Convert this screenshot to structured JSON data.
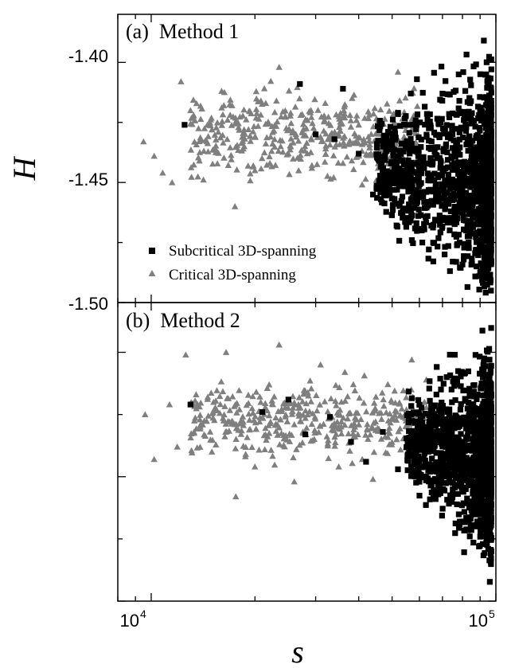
{
  "chart_data": [
    {
      "type": "scatter",
      "panel_label": "(a)  Method 1",
      "xlabel": "s",
      "ylabel": "H",
      "xscale": "log",
      "xlim": [
        8000,
        100000
      ],
      "ylim": [
        -1.5,
        -1.38
      ],
      "yticks": [
        "-1.40",
        "-1.45",
        "-1.50"
      ],
      "xticks": [
        {
          "base": "10",
          "exp": "4"
        },
        {
          "base": "10",
          "exp": "5"
        }
      ],
      "legend": {
        "placement": "lower-left",
        "entries": [
          "Subcritical 3D-spanning",
          "Critical 3D-spanning"
        ]
      },
      "series": [
        {
          "name": "Subcritical 3D-spanning",
          "marker": "square",
          "color": "#000000",
          "points": [
            [
              12500,
              -1.426
            ],
            [
              27000,
              -1.409
            ],
            [
              30000,
              -1.43
            ],
            [
              34000,
              -1.432
            ],
            [
              36000,
              -1.411
            ],
            [
              40000,
              -1.438
            ],
            [
              44000,
              -1.455
            ],
            [
              47000,
              -1.435
            ],
            [
              52000,
              -1.421
            ],
            [
              56000,
              -1.446
            ],
            [
              59000,
              -1.407
            ],
            [
              63000,
              -1.431
            ],
            [
              67000,
              -1.456
            ],
            [
              70000,
              -1.413
            ],
            [
              74000,
              -1.462
            ],
            [
              78000,
              -1.405
            ],
            [
              82000,
              -1.47
            ],
            [
              85000,
              -1.444
            ],
            [
              88000,
              -1.478
            ],
            [
              90000,
              -1.452
            ],
            [
              92000,
              -1.486
            ],
            [
              94000,
              -1.49
            ],
            [
              95000,
              -1.419
            ],
            [
              96000,
              -1.447
            ]
          ],
          "dense_region": {
            "x": [
              45000,
              97000
            ],
            "y": [
              -1.478,
              -1.408
            ]
          }
        },
        {
          "name": "Critical 3D-spanning",
          "marker": "triangle",
          "color": "#7f7f7f",
          "points": [
            [
              8100,
              -1.422
            ],
            [
              9500,
              -1.433
            ],
            [
              10200,
              -1.439
            ],
            [
              10800,
              -1.446
            ],
            [
              11500,
              -1.45
            ],
            [
              12200,
              -1.408
            ],
            [
              13000,
              -1.42
            ],
            [
              13800,
              -1.441
            ],
            [
              15000,
              -1.428
            ],
            [
              16000,
              -1.412
            ],
            [
              17500,
              -1.46
            ],
            [
              18500,
              -1.436
            ],
            [
              20000,
              -1.445
            ],
            [
              21500,
              -1.417
            ],
            [
              23500,
              -1.402
            ],
            [
              25000,
              -1.438
            ],
            [
              28000,
              -1.424
            ],
            [
              32000,
              -1.417
            ],
            [
              36000,
              -1.442
            ],
            [
              40000,
              -1.426
            ],
            [
              45000,
              -1.449
            ],
            [
              52000,
              -1.404
            ],
            [
              60000,
              -1.438
            ],
            [
              70000,
              -1.441
            ]
          ],
          "dense_region": {
            "x": [
              13000,
              60000
            ],
            "y": [
              -1.448,
              -1.412
            ]
          }
        }
      ]
    },
    {
      "type": "scatter",
      "panel_label": "(b)  Method 2",
      "xlabel": "s",
      "ylabel": "H",
      "xscale": "log",
      "xlim": [
        8000,
        100000
      ],
      "ylim": [
        -1.5,
        -1.38
      ],
      "series": [
        {
          "name": "Subcritical 3D-spanning",
          "marker": "square",
          "color": "#000000",
          "points": [
            [
              13000,
              -1.421
            ],
            [
              21000,
              -1.424
            ],
            [
              25000,
              -1.419
            ],
            [
              28000,
              -1.433
            ],
            [
              33000,
              -1.426
            ],
            [
              38000,
              -1.436
            ],
            [
              42000,
              -1.444
            ],
            [
              47000,
              -1.432
            ],
            [
              52000,
              -1.447
            ],
            [
              56000,
              -1.44
            ],
            [
              60000,
              -1.452
            ],
            [
              64000,
              -1.436
            ],
            [
              68000,
              -1.454
            ],
            [
              72000,
              -1.41
            ],
            [
              76000,
              -1.401
            ],
            [
              80000,
              -1.468
            ],
            [
              84000,
              -1.474
            ],
            [
              88000,
              -1.47
            ],
            [
              91000,
              -1.464
            ],
            [
              93000,
              -1.46
            ],
            [
              95000,
              -1.479
            ]
          ],
          "dense_region": {
            "x": [
              55000,
              97000
            ],
            "y": [
              -1.465,
              -1.405
            ]
          }
        },
        {
          "name": "Critical 3D-spanning",
          "marker": "triangle",
          "color": "#7f7f7f",
          "points": [
            [
              8100,
              -1.414
            ],
            [
              9600,
              -1.425
            ],
            [
              10200,
              -1.443
            ],
            [
              11300,
              -1.421
            ],
            [
              11900,
              -1.438
            ],
            [
              12600,
              -1.401
            ],
            [
              13500,
              -1.417
            ],
            [
              15000,
              -1.44
            ],
            [
              16500,
              -1.4
            ],
            [
              17600,
              -1.458
            ],
            [
              18500,
              -1.428
            ],
            [
              20000,
              -1.446
            ],
            [
              22000,
              -1.413
            ],
            [
              23500,
              -1.397
            ],
            [
              26000,
              -1.452
            ],
            [
              28000,
              -1.432
            ],
            [
              31000,
              -1.405
            ],
            [
              35000,
              -1.446
            ],
            [
              39000,
              -1.43
            ],
            [
              44000,
              -1.451
            ],
            [
              50000,
              -1.42
            ],
            [
              57000,
              -1.403
            ],
            [
              64000,
              -1.438
            ],
            [
              72000,
              -1.441
            ]
          ],
          "dense_region": {
            "x": [
              13000,
              65000
            ],
            "y": [
              -1.442,
              -1.412
            ]
          }
        }
      ]
    }
  ]
}
